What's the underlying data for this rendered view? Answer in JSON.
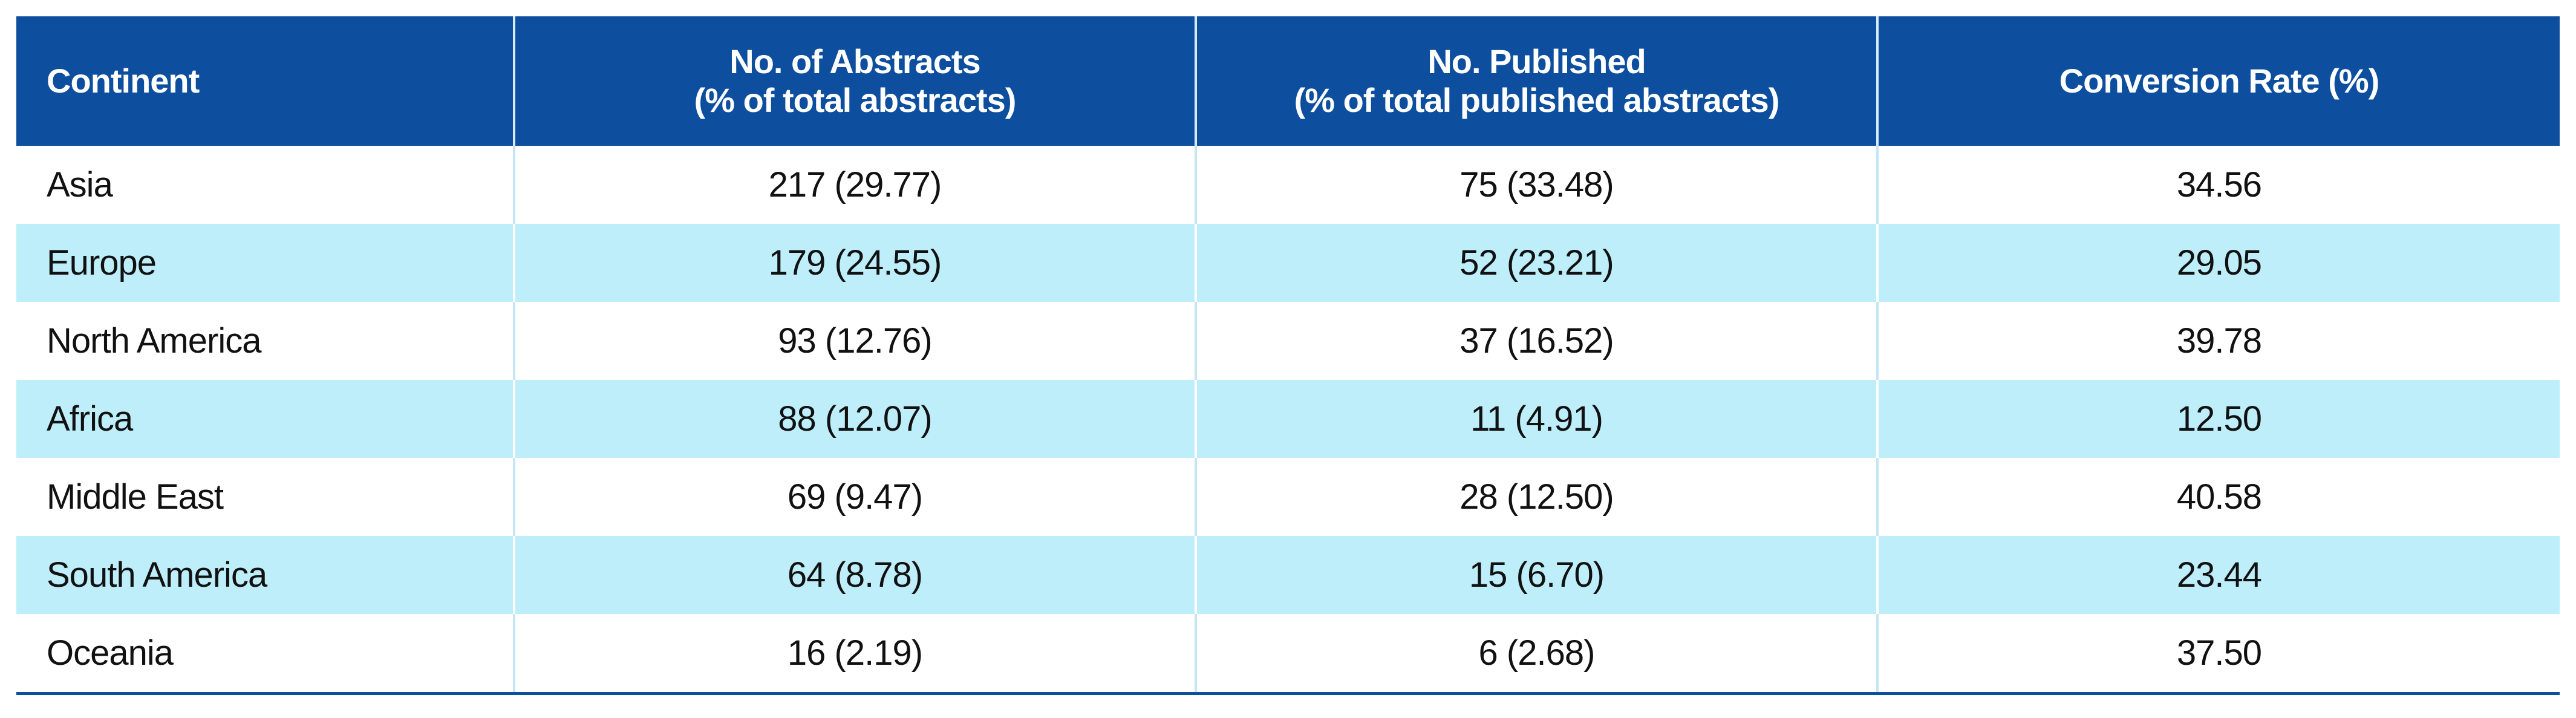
{
  "table": {
    "header": [
      "Continent",
      "No. of Abstracts\n(% of total abstracts)",
      "No. Published\n(% of total published abstracts)",
      "Conversion Rate (%)"
    ],
    "rows": [
      [
        "Asia",
        "217 (29.77)",
        "75 (33.48)",
        "34.56"
      ],
      [
        "Europe",
        "179 (24.55)",
        "52 (23.21)",
        "29.05"
      ],
      [
        "North America",
        "93 (12.76)",
        "37 (16.52)",
        "39.78"
      ],
      [
        "Africa",
        "88 (12.07)",
        "11 (4.91)",
        "12.50"
      ],
      [
        "Middle East",
        "69 (9.47)",
        "28 (12.50)",
        "40.58"
      ],
      [
        "South America",
        "64 (8.78)",
        "15 (6.70)",
        "23.44"
      ],
      [
        "Oceania",
        "16 (2.19)",
        "6 (2.68)",
        "37.50"
      ]
    ]
  }
}
